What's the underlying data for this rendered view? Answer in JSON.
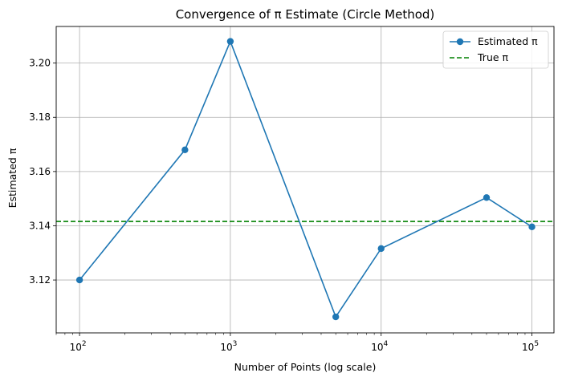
{
  "chart_data": {
    "type": "line",
    "title": "Convergence of π Estimate (Circle Method)",
    "xlabel": "Number of Points (log scale)",
    "ylabel": "Estimated π",
    "xscale": "log",
    "xlim": [
      70,
      140000
    ],
    "ylim": [
      3.1005,
      3.2135
    ],
    "xticks": [
      100,
      1000,
      10000,
      100000
    ],
    "yticks": [
      3.12,
      3.14,
      3.16,
      3.18,
      3.2
    ],
    "ytick_labels": [
      "3.12",
      "3.14",
      "3.16",
      "3.18",
      "3.20"
    ],
    "grid": true,
    "legend_position": "top-right",
    "series": [
      {
        "name": "Estimated π",
        "color": "#1f77b4",
        "marker": "circle",
        "x": [
          100,
          500,
          1000,
          5000,
          10000,
          50000,
          100000
        ],
        "y": [
          3.12,
          3.168,
          3.208,
          3.1064,
          3.1316,
          3.1504,
          3.1396
        ]
      }
    ],
    "reference_lines": [
      {
        "name": "True π",
        "y": 3.14159,
        "color": "#008000",
        "style": "dashed"
      }
    ]
  }
}
